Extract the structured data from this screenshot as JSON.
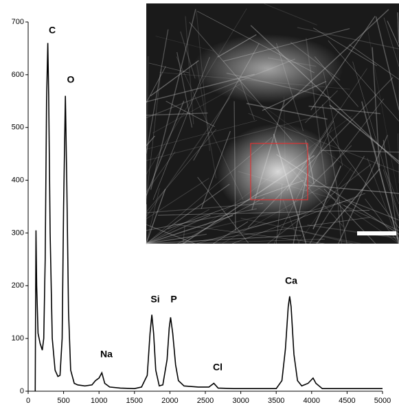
{
  "chart_data": {
    "type": "line",
    "x": [
      100,
      105,
      110,
      120,
      140,
      170,
      200,
      220,
      240,
      260,
      277,
      290,
      310,
      340,
      380,
      420,
      450,
      480,
      500,
      525,
      545,
      570,
      600,
      650,
      700,
      800,
      900,
      950,
      1000,
      1040,
      1080,
      1150,
      1300,
      1500,
      1600,
      1680,
      1720,
      1745,
      1770,
      1800,
      1850,
      1900,
      1960,
      1990,
      2010,
      2040,
      2080,
      2120,
      2200,
      2400,
      2550,
      2620,
      2680,
      2900,
      3200,
      3500,
      3580,
      3630,
      3670,
      3690,
      3710,
      3750,
      3800,
      3860,
      3950,
      4020,
      4060,
      4150,
      4500,
      5000
    ],
    "series": [
      {
        "color": "#000000",
        "values": [
          0,
          150,
          305,
          200,
          110,
          90,
          78,
          100,
          250,
          550,
          660,
          560,
          300,
          100,
          40,
          28,
          30,
          100,
          350,
          560,
          400,
          150,
          40,
          15,
          12,
          10,
          12,
          20,
          25,
          35,
          15,
          8,
          6,
          5,
          8,
          30,
          110,
          145,
          110,
          40,
          10,
          12,
          60,
          120,
          140,
          110,
          50,
          20,
          10,
          8,
          8,
          15,
          6,
          5,
          5,
          5,
          20,
          80,
          160,
          180,
          160,
          70,
          20,
          10,
          15,
          25,
          15,
          5,
          5,
          5
        ]
      }
    ],
    "xlim": [
      0,
      5000
    ],
    "ylim": [
      0,
      700
    ],
    "xticks": [
      0,
      500,
      1000,
      1500,
      2000,
      2500,
      3000,
      3500,
      4000,
      4500,
      5000
    ],
    "yticks": [
      0,
      100,
      200,
      300,
      400,
      500,
      600,
      700
    ],
    "annotations": [
      "C",
      "O",
      "Na",
      "Si",
      "P",
      "Cl",
      "Ca"
    ]
  }
}
